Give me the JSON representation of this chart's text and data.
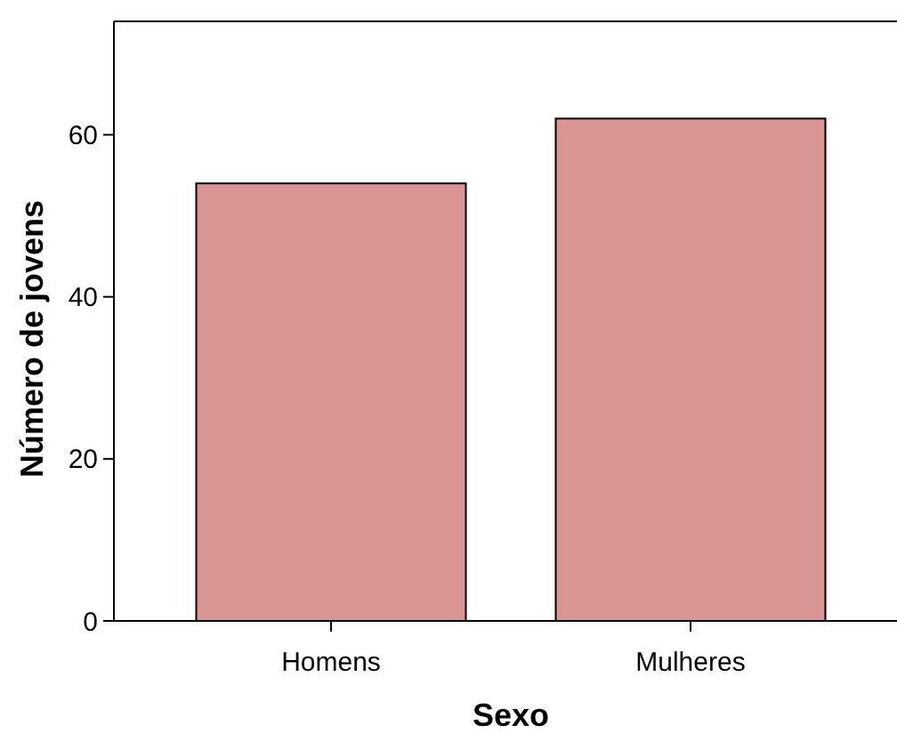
{
  "chart_data": {
    "type": "bar",
    "xlabel": "Sexo",
    "ylabel": "Número de jovens",
    "categories": [
      "Homens",
      "Mulheres"
    ],
    "values": [
      54,
      62
    ],
    "color": "#d99594",
    "ylim": [
      0,
      74
    ],
    "yticks": [
      0,
      20,
      40,
      60
    ],
    "grid": false
  }
}
